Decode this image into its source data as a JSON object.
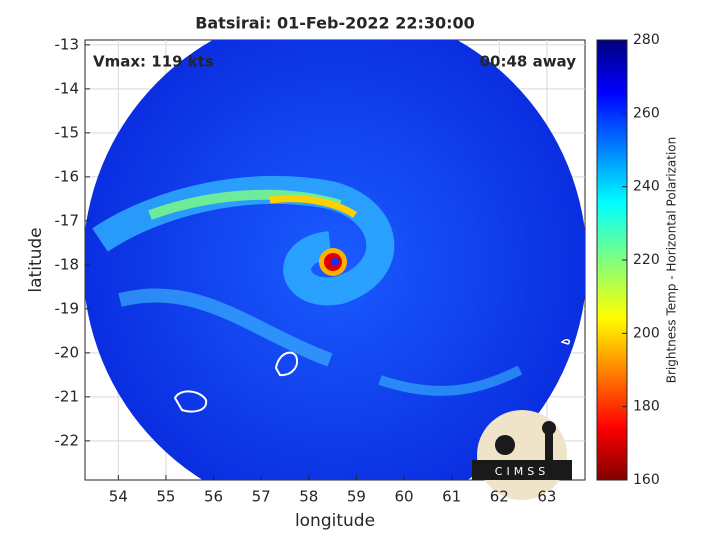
{
  "chart_data": {
    "type": "image",
    "title": "Batsirai: 01-Feb-2022 22:30:00",
    "annotations": [
      "Vmax: 119 kts",
      "00:48 away"
    ],
    "xlabel": "longitude",
    "ylabel": "latitude",
    "xlim": [
      53.3,
      63.8
    ],
    "xticks": [
      54,
      55,
      56,
      57,
      58,
      59,
      60,
      61,
      62,
      63
    ],
    "ylim": [
      -22.89,
      -12.89
    ],
    "yticks": [
      -22,
      -21,
      -20,
      -19,
      -18,
      -17,
      -16,
      -15,
      -14,
      -13
    ],
    "grid": true,
    "colorbar": {
      "label": "Brightness Temp - Horizontal Polarization",
      "lim": [
        160,
        280
      ],
      "ticks": [
        160,
        180,
        200,
        220,
        240,
        260,
        280
      ]
    },
    "logo": "CIMSS"
  }
}
